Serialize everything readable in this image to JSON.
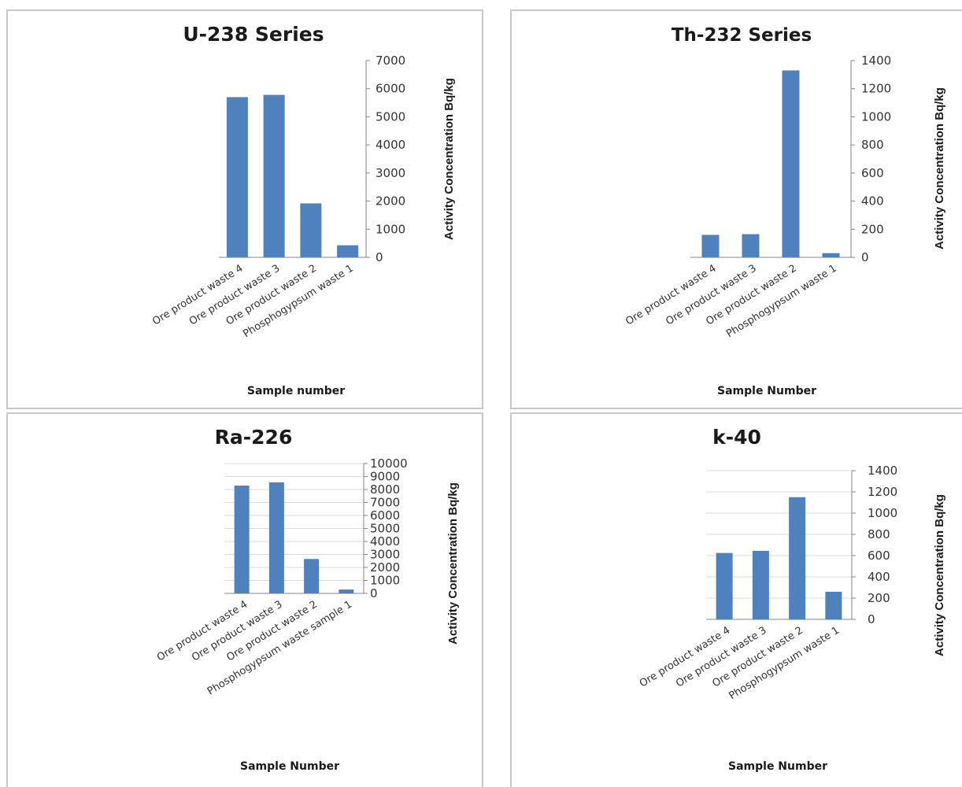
{
  "colors": {
    "bar": "#4f81bd",
    "grid": "#d9d9d9",
    "axis": "#868686"
  },
  "chart_data": [
    {
      "type": "bar",
      "title": "U-238 Series",
      "xlabel": "Sample number",
      "ylabel": "Activity Concentration Bq/kg",
      "categories": [
        "Ore product waste  4",
        "Ore product waste  3",
        "Ore product waste  2",
        "Phosphogypsum waste  1"
      ],
      "values": [
        5700,
        5780,
        1920,
        430
      ],
      "ylim": [
        0,
        7000
      ],
      "yticks": [
        "0",
        "1000",
        "2000",
        "3000",
        "4000",
        "5000",
        "6000",
        "7000"
      ],
      "grid": false,
      "y_axis_side": "right"
    },
    {
      "type": "bar",
      "title": "Th-232 Series",
      "xlabel": "Sample Number",
      "ylabel": "Activity Concentration Bq/kg",
      "categories": [
        "Ore product waste 4",
        "Ore product waste 3",
        "Ore product waste 2",
        "Phosphogypsum waste  1"
      ],
      "values": [
        160,
        165,
        1330,
        30
      ],
      "ylim": [
        0,
        1400
      ],
      "yticks": [
        "0",
        "200",
        "400",
        "600",
        "800",
        "1000",
        "1200",
        "1400"
      ],
      "grid": false,
      "y_axis_side": "right"
    },
    {
      "type": "bar",
      "title": "Ra-226",
      "xlabel": "Sample Number",
      "ylabel": "Activity Concentration Bq/kg",
      "categories": [
        "Ore product waste  4",
        "Ore product waste  3",
        "Ore product waste  2",
        "Phosphogypsum waste sample  1"
      ],
      "values": [
        8300,
        8550,
        2650,
        300
      ],
      "ylim": [
        0,
        10000
      ],
      "yticks": [
        "0",
        "1000",
        "2000",
        "3000",
        "4000",
        "5000",
        "6000",
        "7000",
        "8000",
        "9000",
        "10000"
      ],
      "grid": true,
      "y_axis_side": "right"
    },
    {
      "type": "bar",
      "title": "k-40",
      "xlabel": "Sample Number",
      "ylabel": "Activity Concentration Bq/kg",
      "categories": [
        "Ore product waste 4",
        "Ore product waste 3",
        "Ore product waste 2",
        "Phosphogypsum waste  1"
      ],
      "values": [
        625,
        645,
        1150,
        260
      ],
      "ylim": [
        0,
        1400
      ],
      "yticks": [
        "0",
        "200",
        "400",
        "600",
        "800",
        "1000",
        "1200",
        "1400"
      ],
      "grid": true,
      "y_axis_side": "right"
    }
  ]
}
